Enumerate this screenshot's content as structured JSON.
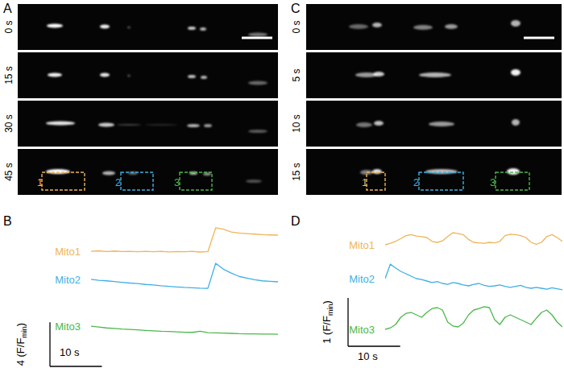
{
  "images": [
    {
      "panel": "A",
      "frames": [
        "0 s",
        "15 s",
        "30 s",
        "45 s"
      ],
      "rois": [
        {
          "label": "1",
          "color": "#f0b45a"
        },
        {
          "label": "2",
          "color": "#3fb0e3"
        },
        {
          "label": "3",
          "color": "#4cb84a"
        }
      ]
    },
    {
      "panel": "C",
      "frames": [
        "0 s",
        "5 s",
        "10 s",
        "15 s"
      ],
      "rois": [
        {
          "label": "1",
          "color": "#f0b45a"
        },
        {
          "label": "2",
          "color": "#3fb0e3"
        },
        {
          "label": "3",
          "color": "#4cb84a"
        }
      ]
    }
  ],
  "chart_data": [
    {
      "type": "line",
      "panel": "B",
      "tick_labels": false,
      "x": [
        0,
        1.5,
        3,
        4.5,
        6,
        7.5,
        9,
        10.5,
        12,
        13.5,
        15,
        16.5,
        18,
        19.5,
        21,
        22.5,
        24,
        25.5,
        27,
        28.5,
        30,
        31.5,
        33,
        34.5,
        36
      ],
      "xlim": [
        0,
        36
      ],
      "ylim": [
        0.5,
        4
      ],
      "series": [
        {
          "name": "Mito1",
          "color": "#f0b45a",
          "values": [
            1.3,
            1.34,
            1.28,
            1.32,
            1.27,
            1.3,
            1.25,
            1.29,
            1.26,
            1.3,
            1.24,
            1.28,
            1.25,
            1.29,
            1.23,
            1.27,
            3.42,
            3.3,
            3.05,
            2.95,
            2.9,
            2.85,
            2.8,
            2.78,
            2.76
          ]
        },
        {
          "name": "Mito2",
          "color": "#3fb0e3",
          "values": [
            2.18,
            2.1,
            2.05,
            1.98,
            1.92,
            1.85,
            1.8,
            1.72,
            1.68,
            1.6,
            1.55,
            1.5,
            1.45,
            1.42,
            1.38,
            1.37,
            3.64,
            3.1,
            2.75,
            2.45,
            2.3,
            2.15,
            2.05,
            2.0,
            1.96
          ]
        },
        {
          "name": "Mito3",
          "color": "#4cb84a",
          "values": [
            1.88,
            1.8,
            1.72,
            1.68,
            1.62,
            1.58,
            1.55,
            1.5,
            1.46,
            1.42,
            1.4,
            1.36,
            1.33,
            1.32,
            1.42,
            1.3,
            1.28,
            1.25,
            1.23,
            1.2,
            1.19,
            1.18,
            1.17,
            1.16,
            1.15
          ]
        }
      ],
      "y_scale_bar": {
        "value": 4,
        "label": "4 (F/F",
        "subscript": "min",
        "suffix": ")"
      },
      "x_scale_bar": {
        "value": 10,
        "label": "10 s"
      }
    },
    {
      "type": "line",
      "panel": "D",
      "tick_labels": false,
      "x": [
        0,
        1,
        2,
        3,
        4,
        5,
        6,
        7,
        8,
        9,
        10,
        11,
        12,
        13,
        14,
        15,
        16,
        17,
        18,
        19,
        20,
        21,
        22,
        23,
        24,
        25,
        26,
        27,
        28,
        29,
        30,
        31,
        32,
        33,
        34
      ],
      "xlim": [
        0,
        34
      ],
      "ylim": [
        1,
        1.8
      ],
      "series": [
        {
          "name": "Mito1",
          "color": "#f0b45a",
          "values": [
            1.45,
            1.48,
            1.52,
            1.58,
            1.64,
            1.66,
            1.63,
            1.62,
            1.6,
            1.52,
            1.5,
            1.53,
            1.62,
            1.7,
            1.68,
            1.66,
            1.56,
            1.5,
            1.49,
            1.48,
            1.5,
            1.49,
            1.52,
            1.64,
            1.67,
            1.66,
            1.64,
            1.6,
            1.5,
            1.46,
            1.5,
            1.62,
            1.66,
            1.6,
            1.52
          ]
        },
        {
          "name": "Mito2",
          "color": "#3fb0e3",
          "values": [
            1.4,
            1.7,
            1.62,
            1.55,
            1.5,
            1.45,
            1.4,
            1.38,
            1.35,
            1.32,
            1.34,
            1.3,
            1.28,
            1.32,
            1.3,
            1.27,
            1.25,
            1.28,
            1.3,
            1.26,
            1.24,
            1.25,
            1.27,
            1.24,
            1.22,
            1.24,
            1.26,
            1.22,
            1.2,
            1.22,
            1.2,
            1.18,
            1.21,
            1.19,
            1.17
          ]
        },
        {
          "name": "Mito3",
          "color": "#4cb84a",
          "values": [
            1.15,
            1.18,
            1.25,
            1.4,
            1.48,
            1.5,
            1.45,
            1.4,
            1.5,
            1.58,
            1.6,
            1.55,
            1.3,
            1.22,
            1.2,
            1.28,
            1.45,
            1.55,
            1.58,
            1.62,
            1.6,
            1.35,
            1.25,
            1.4,
            1.45,
            1.4,
            1.35,
            1.3,
            1.25,
            1.38,
            1.5,
            1.55,
            1.45,
            1.3,
            1.2
          ]
        }
      ],
      "y_scale_bar": {
        "value": 1,
        "label": "1 (F/F",
        "subscript": "min",
        "suffix": ")"
      },
      "x_scale_bar": {
        "value": 10,
        "label": "10 s"
      }
    }
  ]
}
